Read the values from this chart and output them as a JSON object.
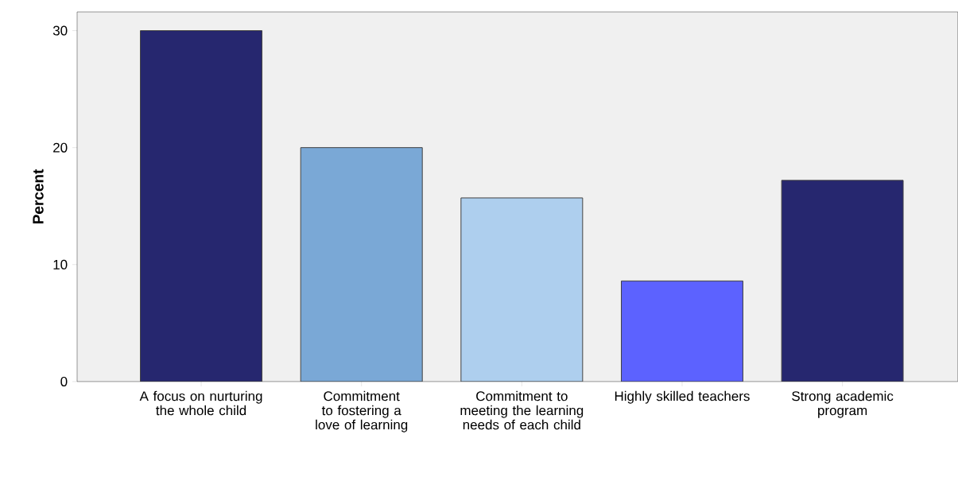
{
  "chart_data": {
    "type": "bar",
    "ylabel": "Percent",
    "categories": [
      "A focus on nurturing the whole child",
      "Commitment to fostering a love of learning",
      "Commitment to meeting the learning needs of each child",
      "Highly skilled teachers",
      "Strong academic program"
    ],
    "values": [
      30,
      20,
      15.7,
      8.6,
      17.2
    ],
    "colors": [
      "#26276f",
      "#7aa8d6",
      "#aecfee",
      "#5c62ff",
      "#26276f"
    ],
    "ylim": [
      0,
      31.6
    ],
    "yticks": [
      0,
      10,
      20,
      30
    ]
  }
}
